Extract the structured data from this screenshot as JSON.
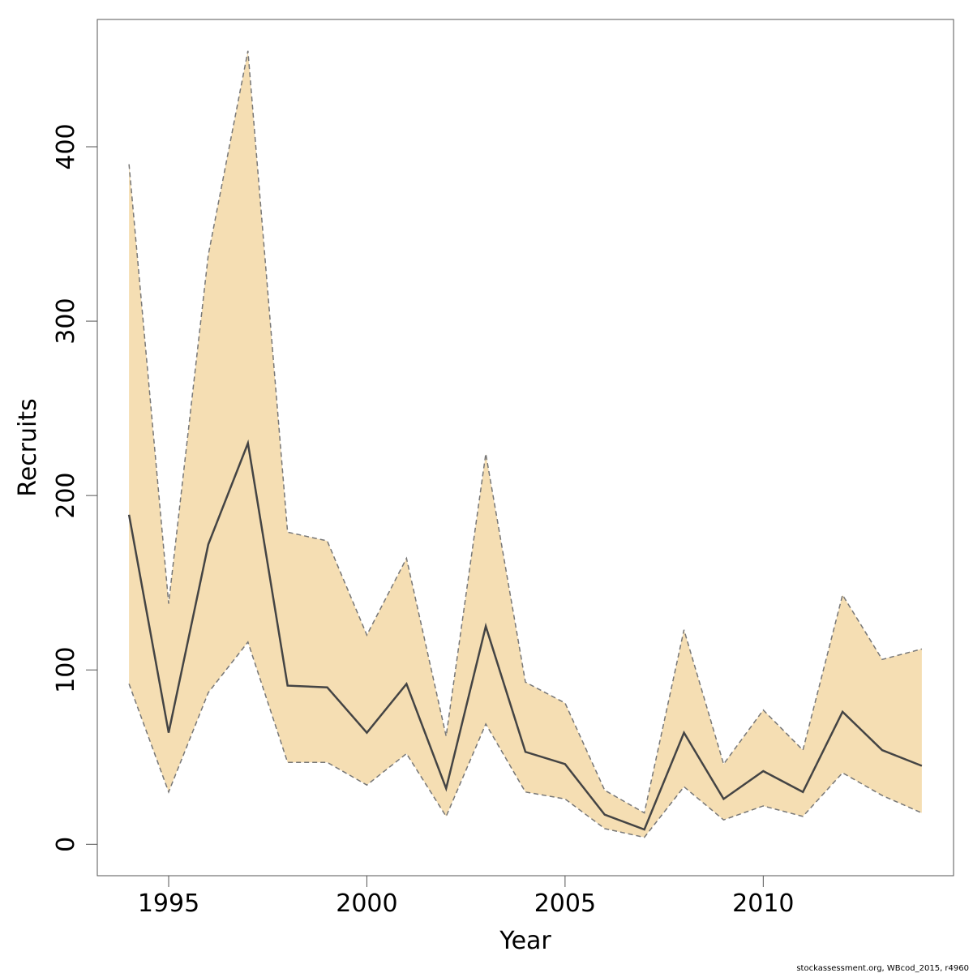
{
  "chart_data": {
    "type": "area",
    "xlabel": "Year",
    "ylabel": "Recruits",
    "xlim": [
      1993.2,
      2014.8
    ],
    "ylim": [
      -18,
      473
    ],
    "x_ticks": [
      1995,
      2000,
      2005,
      2010
    ],
    "y_ticks": [
      0,
      100,
      200,
      300,
      400
    ],
    "grid": false,
    "x": [
      1994,
      1995,
      1996,
      1997,
      1998,
      1999,
      2000,
      2001,
      2002,
      2003,
      2004,
      2005,
      2006,
      2007,
      2008,
      2009,
      2010,
      2011,
      2012,
      2013,
      2014
    ],
    "series": [
      {
        "role": "estimate",
        "values": [
          189,
          64,
          172,
          230,
          91,
          90,
          64,
          92,
          32,
          125,
          53,
          46,
          17,
          8.5,
          64,
          26,
          42,
          30,
          76,
          54,
          45
        ]
      },
      {
        "role": "upper",
        "values": [
          390,
          138,
          338,
          455,
          179,
          174,
          120,
          164,
          62,
          224,
          93,
          81,
          31,
          18,
          123,
          46,
          77,
          54,
          143,
          106,
          112
        ]
      },
      {
        "role": "lower",
        "values": [
          92,
          30,
          87,
          116,
          47,
          47,
          34,
          52,
          16,
          69,
          30,
          26,
          9,
          4,
          33,
          14,
          22,
          16,
          41,
          28,
          18
        ]
      }
    ],
    "colors": {
      "band": "#f5deb3",
      "estimate_line": "#444444",
      "bound_line": "#777777",
      "frame": "#555555"
    }
  },
  "footer": {
    "note": "stockassessment.org, WBcod_2015, r4960"
  }
}
